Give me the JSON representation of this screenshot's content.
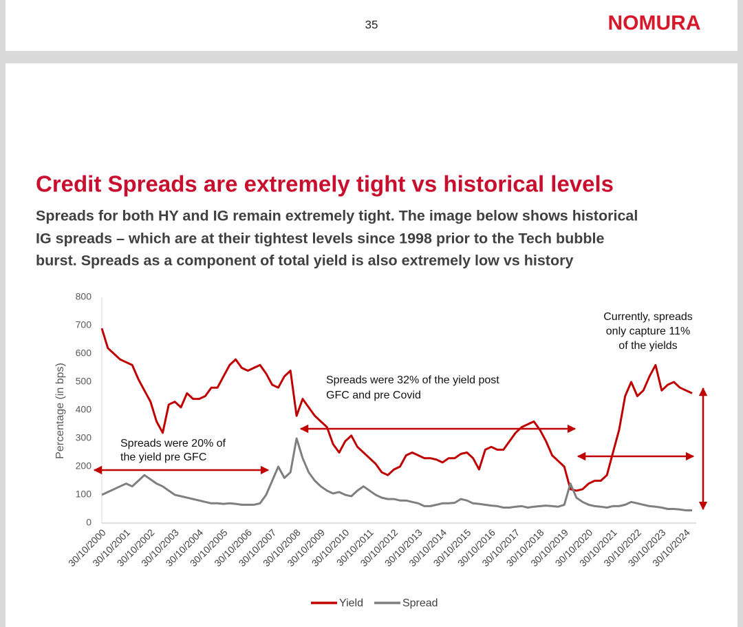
{
  "header": {
    "page_number": "35",
    "logo": "NOMURA"
  },
  "slide": {
    "title": "Credit Spreads are extremely tight vs historical levels",
    "body_lines": [
      "Spreads for both HY and IG remain extremely tight. The image below shows historical",
      "IG spreads – which are at their tightest levels since 1998 prior to the Tech bubble",
      "burst. Spreads as a component of total yield is also extremely low vs history"
    ]
  },
  "chart_data": {
    "type": "line",
    "y_label": "Percentage (in bps)",
    "categories": [
      "30/10/2000",
      null,
      null,
      null,
      "30/10/2001",
      null,
      null,
      null,
      "30/10/2002",
      null,
      null,
      null,
      "30/10/2003",
      null,
      null,
      null,
      "30/10/2004",
      null,
      null,
      null,
      "30/10/2005",
      null,
      null,
      null,
      "30/10/2006",
      null,
      null,
      null,
      "30/10/2007",
      null,
      null,
      null,
      "30/10/2008",
      null,
      null,
      null,
      "30/10/2009",
      null,
      null,
      null,
      "30/10/2010",
      null,
      null,
      null,
      "30/10/2011",
      null,
      null,
      null,
      "30/10/2012",
      null,
      null,
      null,
      "30/10/2013",
      null,
      null,
      null,
      "30/10/2014",
      null,
      null,
      null,
      "30/10/2015",
      null,
      null,
      null,
      "30/10/2016",
      null,
      null,
      null,
      "30/10/2017",
      null,
      null,
      null,
      "30/10/2018",
      null,
      null,
      null,
      "30/10/2019",
      null,
      null,
      null,
      "30/10/2020",
      null,
      null,
      null,
      "30/10/2021",
      null,
      null,
      null,
      "30/10/2022",
      null,
      null,
      null,
      "30/10/2023",
      null,
      null,
      null,
      "30/10/2024",
      null
    ],
    "series": [
      {
        "name": "Yield",
        "color": "#c00000",
        "values": [
          690,
          620,
          600,
          580,
          570,
          560,
          510,
          470,
          430,
          360,
          320,
          420,
          430,
          410,
          460,
          440,
          440,
          450,
          480,
          480,
          520,
          560,
          580,
          550,
          540,
          550,
          560,
          530,
          490,
          480,
          520,
          540,
          380,
          440,
          410,
          380,
          360,
          340,
          280,
          250,
          290,
          310,
          270,
          250,
          230,
          210,
          180,
          170,
          190,
          200,
          240,
          250,
          240,
          230,
          230,
          225,
          215,
          230,
          230,
          245,
          250,
          230,
          190,
          260,
          270,
          260,
          260,
          290,
          320,
          340,
          350,
          360,
          330,
          290,
          240,
          220,
          200,
          120,
          115,
          120,
          140,
          150,
          150,
          170,
          250,
          330,
          450,
          500,
          450,
          470,
          520,
          560,
          470,
          490,
          500,
          480,
          470,
          460
        ]
      },
      {
        "name": "Spread",
        "color": "#7f7f7f",
        "values": [
          100,
          110,
          120,
          130,
          140,
          130,
          150,
          170,
          155,
          140,
          130,
          115,
          100,
          95,
          90,
          85,
          80,
          75,
          70,
          70,
          68,
          70,
          68,
          65,
          65,
          65,
          70,
          100,
          150,
          200,
          160,
          180,
          300,
          230,
          180,
          150,
          130,
          115,
          105,
          110,
          100,
          95,
          115,
          130,
          115,
          100,
          90,
          85,
          85,
          80,
          80,
          75,
          70,
          60,
          60,
          65,
          70,
          70,
          72,
          85,
          80,
          70,
          68,
          65,
          62,
          60,
          55,
          55,
          58,
          60,
          55,
          58,
          60,
          62,
          60,
          58,
          65,
          140,
          90,
          75,
          65,
          60,
          58,
          55,
          60,
          60,
          65,
          75,
          70,
          65,
          60,
          58,
          55,
          50,
          50,
          48,
          45,
          45
        ]
      }
    ],
    "ylim": [
      0,
      800
    ],
    "yticks": [
      0,
      100,
      200,
      300,
      400,
      500,
      600,
      700,
      800
    ],
    "annotations": [
      {
        "lines": [
          "Spreads were 20% of",
          "the yield pre GFC"
        ]
      },
      {
        "lines": [
          "Spreads were 32% of the yield post",
          "GFC and pre Covid"
        ]
      },
      {
        "lines": [
          "Currently, spreads",
          "only capture 11%",
          "of the yields"
        ]
      }
    ],
    "legend": "bottom"
  }
}
